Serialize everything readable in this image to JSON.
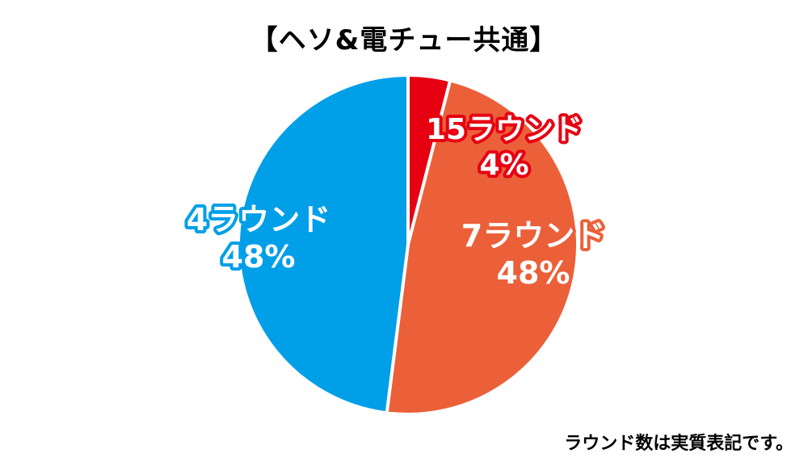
{
  "title": "【ヘソ&電チュー共通】",
  "footnote": "ラウンド数は実質表記です。",
  "chart_data": {
    "type": "pie",
    "title": "【ヘソ&電チュー共通】",
    "slices": [
      {
        "label": "15ラウンド",
        "percent_label": "4%",
        "value": 4,
        "color": "#e60012"
      },
      {
        "label": "7ラウンド",
        "percent_label": "48%",
        "value": 48,
        "color": "#eb6039"
      },
      {
        "label": "4ラウンド",
        "percent_label": "48%",
        "value": 48,
        "color": "#009fe8"
      }
    ],
    "start_angle_deg": 0,
    "direction": "clockwise",
    "legend": "none"
  }
}
